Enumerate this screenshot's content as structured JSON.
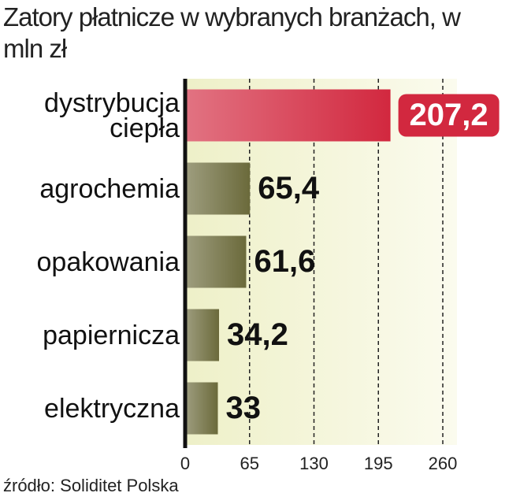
{
  "chart_data": {
    "type": "barh",
    "title": "Zatory płatnicze w wybranych branżach, w mln zł",
    "categories": [
      "dystrybucja ciepła",
      "agrochemia",
      "opakowania",
      "papiernicza",
      "elektryczna"
    ],
    "values": [
      207.2,
      65.4,
      61.6,
      34.2,
      33
    ],
    "value_labels": [
      "207,2",
      "65,4",
      "61,6",
      "34,2",
      "33"
    ],
    "colors": [
      "#d2283f",
      "#6b6a3b",
      "#6b6a3b",
      "#6b6a3b",
      "#6b6a3b"
    ],
    "xlim": [
      0,
      260
    ],
    "xticks": [
      0,
      65,
      130,
      195,
      260
    ],
    "grid": true,
    "source": "źródło: Soliditet Polska"
  }
}
